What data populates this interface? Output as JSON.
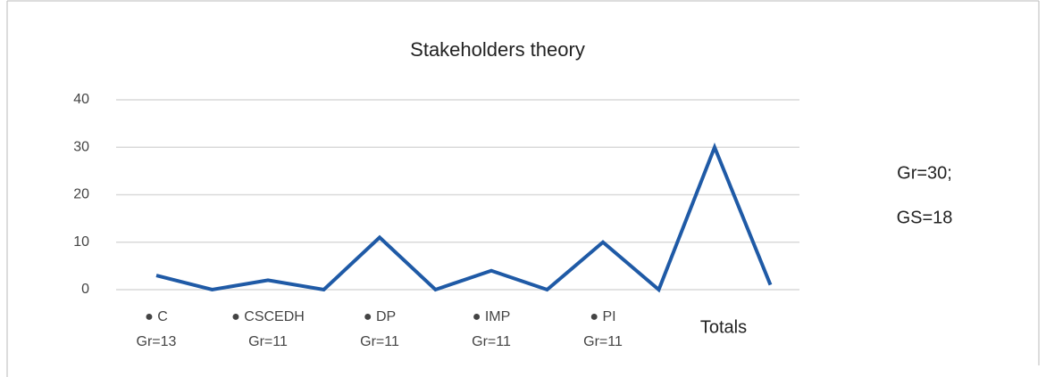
{
  "chart_data": {
    "type": "line",
    "title": "Stakeholders theory",
    "categories": [
      [
        "● C",
        "Gr=13"
      ],
      null,
      [
        "● CSCEDH",
        "Gr=11"
      ],
      null,
      [
        "● DP",
        "Gr=11"
      ],
      null,
      [
        "● IMP",
        "Gr=11"
      ],
      null,
      [
        "● PI",
        "Gr=11"
      ],
      null,
      [
        "Totals"
      ],
      null
    ],
    "series": [
      {
        "color": "#1f5aa6",
        "values": [
          3,
          0,
          2,
          0,
          11,
          0,
          4,
          0,
          10,
          0,
          30,
          1
        ]
      }
    ],
    "ylim": [
      0,
      40
    ],
    "yticks": [
      0,
      10,
      20,
      30,
      40
    ],
    "grid": true,
    "annotations": [
      "Gr=30;",
      "GS=18"
    ]
  }
}
